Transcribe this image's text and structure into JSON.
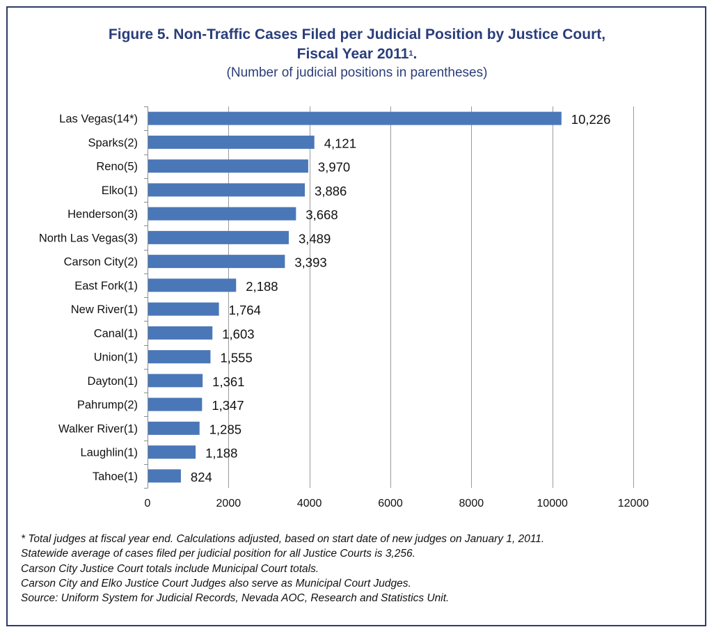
{
  "title": {
    "line1": "Figure 5. Non-Traffic Cases Filed per Judicial Position by Justice Court,",
    "line2": "Fiscal Year 2011",
    "line2_sup": "1",
    "line2_end": ".",
    "subtitle": "(Number of judicial positions in parentheses)"
  },
  "chart_data": {
    "type": "bar",
    "orientation": "horizontal",
    "categories": [
      "Las Vegas(14*)",
      "Sparks(2)",
      "Reno(5)",
      "Elko(1)",
      "Henderson(3)",
      "North Las Vegas(3)",
      "Carson City(2)",
      "East Fork(1)",
      "New River(1)",
      "Canal(1)",
      "Union(1)",
      "Dayton(1)",
      "Pahrump(2)",
      "Walker River(1)",
      "Laughlin(1)",
      "Tahoe(1)"
    ],
    "values": [
      10226,
      4121,
      3970,
      3886,
      3668,
      3489,
      3393,
      2188,
      1764,
      1603,
      1555,
      1361,
      1347,
      1285,
      1188,
      824
    ],
    "value_labels": [
      "10,226",
      "4,121",
      "3,970",
      "3,886",
      "3,668",
      "3,489",
      "3,393",
      "2,188",
      "1,764",
      "1,603",
      "1,555",
      "1,361",
      "1,347",
      "1,285",
      "1,188",
      "824"
    ],
    "xlim": [
      0,
      12000
    ],
    "x_ticks": [
      0,
      2000,
      4000,
      6000,
      8000,
      10000,
      12000
    ],
    "x_tick_labels": [
      "0",
      "2000",
      "4000",
      "6000",
      "8000",
      "10000",
      "12000"
    ],
    "grid": "vertical",
    "legend": "none",
    "bar_color": "#4a77b8",
    "grid_color": "#9a9a9a"
  },
  "notes": [
    "* Total judges at fiscal year end. Calculations adjusted, based on start date of new judges on January 1, 2011.",
    "Statewide average of cases filed per judicial position for all Justice Courts is 3,256.",
    "Carson City Justice Court totals include Municipal Court totals.",
    "Carson City and Elko Justice Court Judges also serve as Municipal Court Judges.",
    "Source: Uniform System for Judicial Records, Nevada AOC, Research and Statistics Unit."
  ],
  "colors": {
    "title": "#2a3d7a",
    "frame": "#2b3b6b",
    "bar": "#4a77b8"
  }
}
